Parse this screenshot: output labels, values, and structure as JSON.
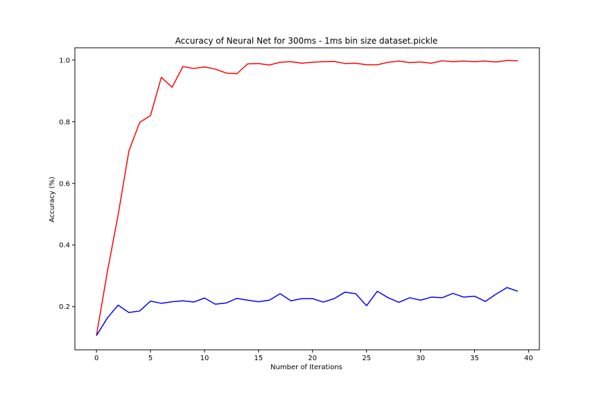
{
  "chart_data": {
    "type": "line",
    "title": "Accuracy of Neural Net for 300ms - 1ms bin size dataset.pickle",
    "xlabel": "Number of Iterations",
    "ylabel": "Accuracy (%)",
    "xlim": [
      -2,
      41
    ],
    "ylim": [
      0.06,
      1.04
    ],
    "xticks": [
      0,
      5,
      10,
      15,
      20,
      25,
      30,
      35,
      40
    ],
    "xtick_labels": [
      "0",
      "5",
      "10",
      "15",
      "20",
      "25",
      "30",
      "35",
      "40"
    ],
    "yticks": [
      0.2,
      0.4,
      0.6,
      0.8,
      1.0
    ],
    "ytick_labels": [
      "0.2",
      "0.4",
      "0.6",
      "0.8",
      "1.0"
    ],
    "grid": false,
    "legend": null,
    "x": [
      0,
      1,
      2,
      3,
      4,
      5,
      6,
      7,
      8,
      9,
      10,
      11,
      12,
      13,
      14,
      15,
      16,
      17,
      18,
      19,
      20,
      21,
      22,
      23,
      24,
      25,
      26,
      27,
      28,
      29,
      30,
      31,
      32,
      33,
      34,
      35,
      36,
      37,
      38,
      39
    ],
    "series": [
      {
        "name": "series-red",
        "color": "#ff0000",
        "values": [
          0.107,
          0.312,
          0.497,
          0.705,
          0.798,
          0.82,
          0.944,
          0.912,
          0.979,
          0.973,
          0.978,
          0.971,
          0.958,
          0.956,
          0.988,
          0.989,
          0.984,
          0.993,
          0.995,
          0.99,
          0.993,
          0.995,
          0.996,
          0.989,
          0.99,
          0.985,
          0.985,
          0.993,
          0.997,
          0.992,
          0.994,
          0.99,
          0.998,
          0.995,
          0.997,
          0.995,
          0.997,
          0.994,
          0.999,
          0.998
        ]
      },
      {
        "name": "series-blue",
        "color": "#0000ff",
        "values": [
          0.106,
          0.163,
          0.205,
          0.181,
          0.186,
          0.218,
          0.211,
          0.216,
          0.219,
          0.215,
          0.228,
          0.208,
          0.212,
          0.227,
          0.221,
          0.216,
          0.221,
          0.242,
          0.219,
          0.226,
          0.226,
          0.215,
          0.226,
          0.247,
          0.242,
          0.203,
          0.25,
          0.229,
          0.214,
          0.229,
          0.221,
          0.231,
          0.229,
          0.243,
          0.231,
          0.234,
          0.217,
          0.241,
          0.262,
          0.25
        ]
      }
    ]
  }
}
